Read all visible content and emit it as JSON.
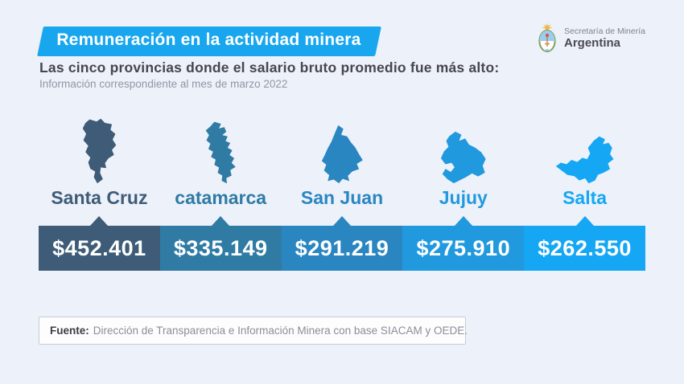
{
  "header": {
    "title": "Remuneración en la actividad minera",
    "org_line1": "Secretaría de Minería",
    "org_line2": "Argentina",
    "subtitle": "Las cinco provincias donde el salario bruto promedio fue más alto:",
    "period": "Información correspondiente al mes de marzo 2022"
  },
  "chart_data": {
    "type": "bar",
    "title": "Las cinco provincias donde el salario bruto promedio fue más alto (marzo 2022)",
    "categories": [
      "Santa Cruz",
      "catamarca",
      "San Juan",
      "Jujuy",
      "Salta"
    ],
    "values": [
      452401,
      335149,
      291219,
      275910,
      262550
    ],
    "value_labels": [
      "$452.401",
      "$335.149",
      "$291.219",
      "$275.910",
      "$262.550"
    ],
    "unit": "ARS (pesos argentinos)",
    "legend": "none",
    "layout": "five equal-width colored segments with province map silhouette and name above each value"
  },
  "provinces": [
    {
      "id": "santa-cruz",
      "name": "Santa Cruz",
      "value": "$452.401",
      "color": "#3e5c77"
    },
    {
      "id": "catamarca",
      "name": "catamarca",
      "value": "$335.149",
      "color": "#2f7ba4"
    },
    {
      "id": "san-juan",
      "name": "San Juan",
      "value": "$291.219",
      "color": "#2a86c1"
    },
    {
      "id": "jujuy",
      "name": "Jujuy",
      "value": "$275.910",
      "color": "#2199de"
    },
    {
      "id": "salta",
      "name": "Salta",
      "value": "$262.550",
      "color": "#15a7f4"
    }
  ],
  "footer": {
    "label": "Fuente:",
    "text": "Dirección de Transparencia e Información Minera con base SIACAM y OEDE."
  },
  "colors": {
    "background": "#edf1fa",
    "banner": "#18a7ef",
    "heading_text": "#46464f",
    "period_text": "#9097a4",
    "value_text": "#ffffff",
    "footer_border": "#c7cbd6"
  }
}
